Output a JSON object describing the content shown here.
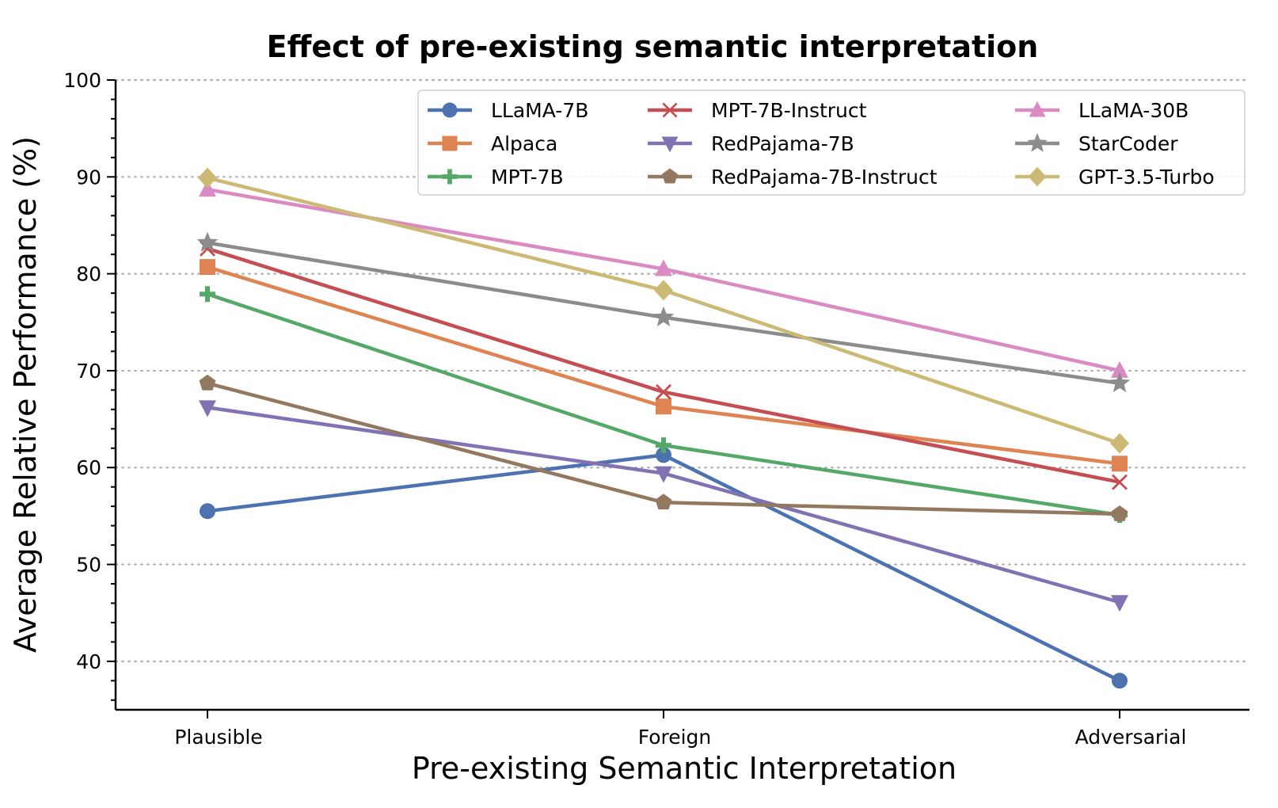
{
  "chart_data": {
    "type": "line",
    "title": "Effect of pre-existing semantic interpretation",
    "xlabel": "Pre-existing Semantic Interpretation",
    "ylabel": "Average Relative Performance (%)",
    "categories": [
      "Plausible",
      "Foreign",
      "Adversarial"
    ],
    "ylim": [
      35,
      100
    ],
    "yticks": [
      40,
      50,
      60,
      70,
      80,
      90,
      100
    ],
    "grid": "horizontal dotted",
    "legend_position": "top-right",
    "series": [
      {
        "name": "LLaMA-7B",
        "marker": "circle",
        "color": "#4c72b0",
        "values": [
          55.5,
          61.3,
          38.0
        ]
      },
      {
        "name": "Alpaca",
        "marker": "square",
        "color": "#dd8452",
        "values": [
          80.7,
          66.3,
          60.4
        ]
      },
      {
        "name": "MPT-7B",
        "marker": "plus",
        "color": "#55a868",
        "values": [
          77.9,
          62.3,
          55.1
        ]
      },
      {
        "name": "MPT-7B-Instruct",
        "marker": "x",
        "color": "#c44e52",
        "values": [
          82.6,
          67.8,
          58.5
        ]
      },
      {
        "name": "RedPajama-7B",
        "marker": "triangle-down",
        "color": "#8172b3",
        "values": [
          66.2,
          59.4,
          46.1
        ]
      },
      {
        "name": "RedPajama-7B-Instruct",
        "marker": "pentagon",
        "color": "#937860",
        "values": [
          68.7,
          56.4,
          55.2
        ]
      },
      {
        "name": "LLaMA-30B",
        "marker": "triangle-up",
        "color": "#da8bc3",
        "values": [
          88.7,
          80.5,
          70.0
        ]
      },
      {
        "name": "StarCoder",
        "marker": "star",
        "color": "#8c8c8c",
        "values": [
          83.2,
          75.5,
          68.7
        ]
      },
      {
        "name": "GPT-3.5-Turbo",
        "marker": "diamond",
        "color": "#ccb974",
        "values": [
          89.9,
          78.3,
          62.5
        ]
      }
    ]
  }
}
